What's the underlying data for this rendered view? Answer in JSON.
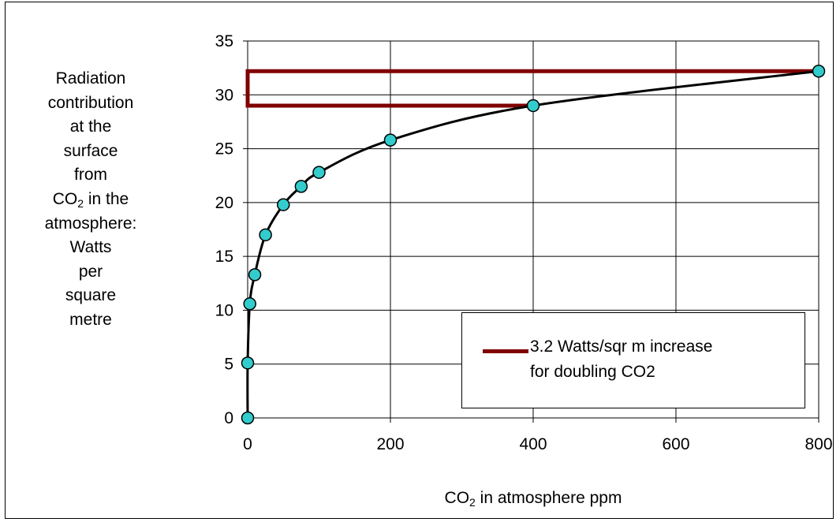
{
  "chart_data": {
    "type": "scatter",
    "xlabel_parts": [
      "CO",
      "2",
      " in atmosphere ppm"
    ],
    "ylabel_lines": [
      "Radiation",
      "contribution",
      "at the",
      "surface",
      "from",
      "CO|2| in the",
      "atmosphere:",
      "Watts",
      "per",
      "square",
      "metre"
    ],
    "xlim": [
      0,
      800
    ],
    "ylim": [
      0,
      35
    ],
    "x_ticks": [
      "0",
      "200",
      "400",
      "600",
      "800"
    ],
    "y_ticks": [
      "0",
      "5",
      "10",
      "15",
      "20",
      "25",
      "30",
      "35"
    ],
    "grid": true,
    "series": [
      {
        "role": "markers-with-curve",
        "points": [
          {
            "x": 0,
            "y": 0
          },
          {
            "x": 0,
            "y": 5.1
          },
          {
            "x": 3,
            "y": 10.6
          },
          {
            "x": 10,
            "y": 13.3
          },
          {
            "x": 25,
            "y": 17.0
          },
          {
            "x": 50,
            "y": 19.8
          },
          {
            "x": 75,
            "y": 21.5
          },
          {
            "x": 100,
            "y": 22.8
          },
          {
            "x": 200,
            "y": 25.8
          },
          {
            "x": 400,
            "y": 29.0
          },
          {
            "x": 800,
            "y": 32.2
          }
        ],
        "marker_color": "#33cccc",
        "line_color": "#000000"
      },
      {
        "name": "3.2 Watts/sqr m increase for doubling CO2",
        "role": "bracket",
        "points": [
          {
            "x": 800,
            "y": 32.2
          },
          {
            "x": 0,
            "y": 32.2
          },
          {
            "x": 0,
            "y": 29.0
          },
          {
            "x": 400,
            "y": 29.0
          }
        ],
        "line_color": "#800000"
      }
    ],
    "legend": {
      "placement": "bottom-right",
      "line1": "3.2 Watts/sqr m increase",
      "line2": "for doubling CO2"
    }
  }
}
